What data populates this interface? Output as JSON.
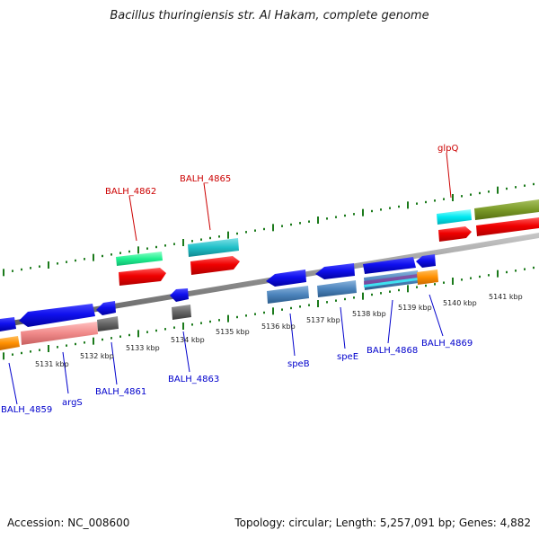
{
  "title": "Bacillus thuringiensis str. Al Hakam, complete genome",
  "footer": {
    "accession": "Accession: NC_008600",
    "summary": "Topology: circular; Length: 5,257,091 bp; Genes: 4,882"
  },
  "colors": {
    "backbone": "#8c8c8c",
    "tick": "#1b7a1b",
    "label_red": "#cc0000",
    "label_blue": "#0000cc"
  },
  "kbp_labels": [
    "5131 kbp",
    "5132 kbp",
    "5133 kbp",
    "5134 kbp",
    "5135 kbp",
    "5136 kbp",
    "5137 kbp",
    "5138 kbp",
    "5139 kbp",
    "5140 kbp",
    "5141 kbp"
  ],
  "gene_labels": {
    "balh_4862": "BALH_4862",
    "balh_4865": "BALH_4865",
    "glpq": "glpQ",
    "balh_4859": "BALH_4859",
    "args": "argS",
    "balh_4861": "BALH_4861",
    "balh_4863": "BALH_4863",
    "speb": "speB",
    "spee": "speE",
    "balh_4868": "BALH_4868",
    "balh_4869": "BALH_4869"
  }
}
